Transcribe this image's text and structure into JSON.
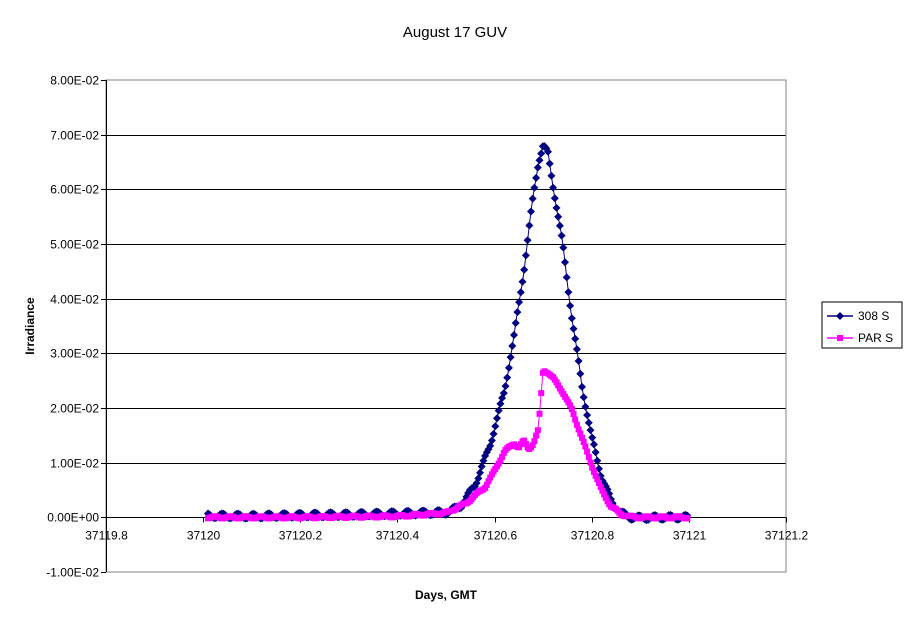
{
  "chart_data": {
    "type": "scatter",
    "title": "August 17 GUV",
    "xlabel": "Days, GMT",
    "ylabel": "Irradiance",
    "xlim": [
      37119.8,
      37121.2
    ],
    "ylim": [
      -0.01,
      0.08
    ],
    "x_ticks": [
      37119.8,
      37120,
      37120.2,
      37120.4,
      37120.6,
      37120.8,
      37121,
      37121.2
    ],
    "x_tick_labels": [
      "37119.8",
      "37120",
      "37120.2",
      "37120.4",
      "37120.6",
      "37120.8",
      "37121",
      "37121.2"
    ],
    "y_ticks": [
      -0.01,
      0,
      0.01,
      0.02,
      0.03,
      0.04,
      0.05,
      0.06,
      0.07,
      0.08
    ],
    "y_tick_labels": [
      "-1.00E-02",
      "0.00E+00",
      "1.00E-02",
      "2.00E-02",
      "3.00E-02",
      "4.00E-02",
      "5.00E-02",
      "6.00E-02",
      "7.00E-02",
      "8.00E-02"
    ],
    "grid": "horizontal",
    "legend_position": "right",
    "series": [
      {
        "name": "308 S",
        "color": "#000080",
        "marker": "diamond",
        "x": [
          37120.01,
          37120.1,
          37120.2,
          37120.3,
          37120.4,
          37120.5,
          37120.53,
          37120.56,
          37120.59,
          37120.62,
          37120.64,
          37120.66,
          37120.68,
          37120.69,
          37120.7,
          37120.71,
          37120.72,
          37120.74,
          37120.76,
          37120.78,
          37120.8,
          37120.82,
          37120.84,
          37120.86,
          37120.88,
          37120.9,
          37120.95,
          37121
        ],
        "y": [
          0.0003,
          0.0002,
          0.0004,
          0.0005,
          0.0007,
          0.0009,
          0.002,
          0.006,
          0.013,
          0.023,
          0.033,
          0.045,
          0.059,
          0.065,
          0.068,
          0.0665,
          0.061,
          0.05,
          0.036,
          0.024,
          0.0145,
          0.0075,
          0.003,
          0.0008,
          0.0,
          -0.0001,
          0.0,
          0.0
        ]
      },
      {
        "name": "PAR S",
        "color": "#FF00FF",
        "marker": "square",
        "x": [
          37120.01,
          37120.1,
          37120.2,
          37120.3,
          37120.4,
          37120.5,
          37120.54,
          37120.58,
          37120.6,
          37120.62,
          37120.64,
          37120.65,
          37120.66,
          37120.67,
          37120.68,
          37120.69,
          37120.7,
          37120.71,
          37120.72,
          37120.74,
          37120.76,
          37120.78,
          37120.8,
          37120.82,
          37120.84,
          37120.86,
          37120.88,
          37120.9,
          37120.95,
          37121
        ],
        "y": [
          0.0,
          0.0,
          0.0,
          0.0001,
          0.0002,
          0.0008,
          0.0025,
          0.0055,
          0.0085,
          0.012,
          0.0135,
          0.0128,
          0.014,
          0.0125,
          0.0135,
          0.016,
          0.027,
          0.0265,
          0.0255,
          0.023,
          0.0195,
          0.0145,
          0.0095,
          0.005,
          0.002,
          0.0006,
          0.0001,
          0.0,
          0.0,
          0.0
        ]
      }
    ]
  }
}
